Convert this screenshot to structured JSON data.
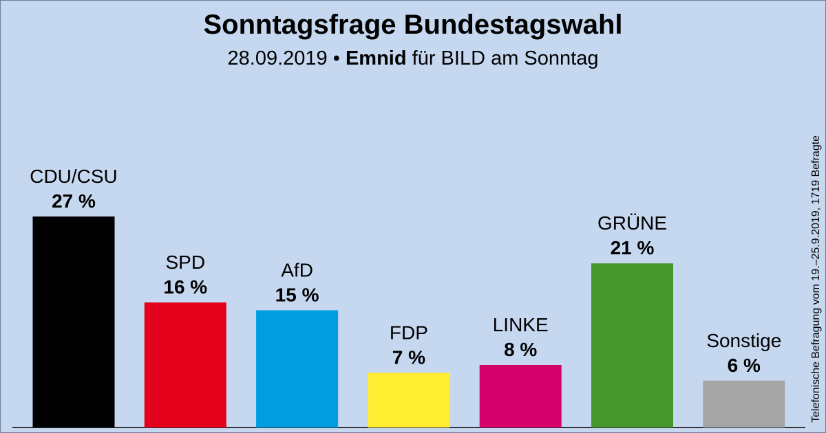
{
  "header": {
    "title": "Sonntagsfrage Bundestagswahl",
    "date": "28.09.2019",
    "separator": "•",
    "institute": "Emnid",
    "client": "für BILD am Sonntag"
  },
  "side_note": "Telefonische Befragung vom 19.–25.9.2019, 1719 Befragte",
  "chart_data": {
    "type": "bar",
    "title": "Sonntagsfrage Bundestagswahl",
    "xlabel": "",
    "ylabel": "",
    "unit": "%",
    "ylim": [
      0,
      27
    ],
    "grid": false,
    "categories": [
      "CDU/CSU",
      "SPD",
      "AfD",
      "FDP",
      "LINKE",
      "GRÜNE",
      "Sonstige"
    ],
    "values": [
      27,
      16,
      15,
      7,
      8,
      21,
      6
    ],
    "value_labels": [
      "27 %",
      "16 %",
      "15 %",
      "7 %",
      "8 %",
      "21 %",
      "6 %"
    ],
    "colors": [
      "#000000",
      "#e3001b",
      "#009ee0",
      "#ffed32",
      "#d50069",
      "#46962b",
      "#a5a5a5"
    ]
  }
}
